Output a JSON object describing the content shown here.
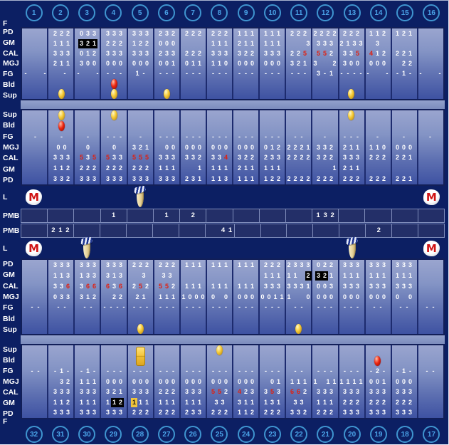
{
  "colors": {
    "background": "#0c1f63",
    "panel_top": "#9aa5cf",
    "panel_bottom": "#3e52a2",
    "grid_line": "#1d2b6e",
    "separator_band": "#8a98c6",
    "circle_blue": "#4aa3e8",
    "digit_white": "#ffffff",
    "digit_red": "#e02010",
    "highlight_black": "#000000",
    "highlight_yellow": "#f0c43c",
    "egg_yellow": "#f8cd3a",
    "egg_red": "#ee2812",
    "m_logo_red": "#d01414",
    "tooth_cream": "#ecdcab",
    "cap_navy": "#1c3390"
  },
  "icons": {
    "m_letter": "M",
    "legend": {
      "YE": "yellow-egg-icon",
      "RE": "red-egg-icon",
      "GB": "gold-bar-icon",
      "M": "m-logo-icon",
      "TH": "tooth-cap-icon"
    }
  },
  "top_circles": [
    "1",
    "2",
    "3",
    "4",
    "5",
    "6",
    "7",
    "8",
    "9",
    "10",
    "11",
    "12",
    "13",
    "14",
    "15",
    "16"
  ],
  "bottom_circles": [
    "32",
    "31",
    "30",
    "29",
    "28",
    "27",
    "26",
    "25",
    "24",
    "23",
    "22",
    "21",
    "20",
    "19",
    "18",
    "17"
  ],
  "f_rows": {
    "top_label": "F",
    "bottom_label": "F"
  },
  "l_rows": [
    {
      "label": "L",
      "cells": [
        "M",
        "",
        "",
        "",
        "TH",
        "",
        "",
        "",
        "",
        "",
        "",
        "",
        "",
        "",
        "",
        "M"
      ]
    },
    {
      "label": "L",
      "cells": [
        "M",
        "",
        "TH",
        "",
        "",
        "",
        "",
        "",
        "",
        "",
        "",
        "",
        "TH",
        "",
        "",
        "M"
      ]
    }
  ],
  "pmb_rows": [
    {
      "label": "PMB",
      "cells": [
        "",
        "",
        "",
        "1",
        "",
        "1",
        "2",
        "",
        "",
        "",
        "",
        "1 3 2",
        "",
        "",
        "",
        ""
      ]
    },
    {
      "label": "PMB",
      "cells": [
        "",
        "2 1 2",
        "",
        "",
        "",
        "",
        "",
        "_ _ 4 1",
        "",
        "",
        "",
        "",
        "",
        "2",
        "",
        ""
      ]
    }
  ],
  "sections": [
    {
      "id": "s1",
      "rows": [
        {
          "label": "PD",
          "cells": [
            "",
            "2 2 2",
            "0 3 3",
            "3 3 3",
            "3 3 3",
            "2 3 2",
            "2 2 2",
            "2 2 2",
            "1 1 1",
            "1 1 1",
            "2 2 2",
            "2 2 2 2",
            "2 2 2",
            "1 1 2",
            "1 2 1",
            ""
          ]
        },
        {
          "label": "GM",
          "cells": [
            "",
            "1 1 1",
            "b3 b2 b1",
            "2 2 2",
            "1 2 2",
            "0 0 0",
            "",
            "1 1 1",
            "2 1 1",
            "1 1 1",
            "_ _ _ 3",
            "3 3 3",
            "2 1 3 3",
            "3",
            "",
            ""
          ]
        },
        {
          "label": "CAL",
          "cells": [
            "",
            "3 3 3",
            "0 1 2",
            "3 3 3",
            "3 3 3",
            "2 3 3",
            "2 2 2",
            "3 3 3",
            "3 2 2",
            "3 3 3",
            "2 2 r5",
            "r5 r5 2",
            "3 3 r5",
            "r4 1 2",
            "2 2 1",
            ""
          ]
        },
        {
          "label": "MGJ",
          "cells": [
            "",
            "2 1 1",
            "3 0 0",
            "0 0 0",
            "0 0 0",
            "0 0 1",
            "0 1 1",
            "1 1 0",
            "0 0 0",
            "0 0 0",
            "3 2 1",
            "3 _ _ 2",
            "3 0 0",
            "0 0 0",
            "_ 2 2",
            ""
          ]
        },
        {
          "label": "FG",
          "cells": [
            "- _ _ -",
            "_ -",
            "- _ _ -",
            "- - -",
            "1 -",
            "- - -",
            "- - -",
            "- - -",
            "- - -",
            "- - -",
            "- - -",
            "3 - 1",
            "- - - -",
            "- _ _ -",
            "- 1 -",
            "- _ _ -"
          ]
        },
        {
          "label": "Bld",
          "cells": [
            "",
            "",
            "",
            "RE",
            "",
            "",
            "",
            "",
            "",
            "",
            "",
            "",
            "",
            "",
            "",
            ""
          ]
        },
        {
          "label": "Sup",
          "cells": [
            "",
            "YE",
            "",
            "YE",
            "",
            "YE",
            "",
            "",
            "",
            "",
            "",
            "",
            "YE",
            "",
            "",
            ""
          ]
        }
      ]
    },
    {
      "id": "s2",
      "rows": [
        {
          "label": "Sup",
          "cells": [
            "",
            "YE",
            "",
            "YE",
            "",
            "",
            "",
            "",
            "",
            "",
            "",
            "",
            "YE",
            "",
            "",
            ""
          ]
        },
        {
          "label": "Bld",
          "cells": [
            "",
            "RE",
            "",
            "",
            "",
            "",
            "",
            "",
            "",
            "",
            "",
            "",
            "",
            "",
            "",
            ""
          ]
        },
        {
          "label": "FG",
          "cells": [
            "-",
            "-",
            "-",
            "- - -",
            "-",
            "- - -",
            "- - -",
            "- - -",
            "- - -",
            "- - -",
            "- -",
            "-",
            "- - -",
            "-",
            "-",
            "-"
          ]
        },
        {
          "label": "MGJ",
          "cells": [
            "",
            "0 0",
            "0",
            "0",
            "3 2 1",
            "_ 0 0",
            "0 0 0",
            "0 0 0",
            "0 0 0",
            "0 1 2",
            "2 2 2 1",
            "3 3 2",
            "2 1 1",
            "1 1 0",
            "0 0 0",
            ""
          ]
        },
        {
          "label": "CAL",
          "cells": [
            "",
            "3 3 3",
            "r5 3 r5",
            "r5 3 3",
            "r5 r5 r5",
            "3 3 3",
            "3 3 2",
            "3 3 r4",
            "3 2 2",
            "2 3 3",
            "2 2 2 2",
            "3 2 2",
            "3 3 3",
            "2 2 2",
            "2 2 1",
            ""
          ]
        },
        {
          "label": "GM",
          "cells": [
            "",
            "1 1 2",
            "2 2 2",
            "2 2 2",
            "2 2 2",
            "1 1 1",
            "_ _ 1",
            "1 1 1",
            "2 1 1",
            "1 1 1",
            "",
            "_ _ _ 1",
            "2 1 1",
            "",
            "",
            ""
          ]
        },
        {
          "label": "PD",
          "cells": [
            "",
            "3 3 2",
            "3 3 3",
            "3 3 3",
            "3 3 3",
            "3 3 3",
            "2 3 1",
            "1 1 3",
            "1 1 1",
            "1 2 2",
            "2 2 2 2",
            "2 2 2",
            "2 2 2",
            "2 2 2",
            "2 2 1",
            ""
          ]
        }
      ]
    },
    {
      "id": "s3",
      "rows": [
        {
          "label": "PD",
          "cells": [
            "",
            "3 3 3",
            "3 3 3",
            "3 3 3",
            "2 2 2",
            "2 2 2",
            "1 1 1",
            "1 1 1",
            "1 1 1",
            "2 2 2",
            "2 3 3 3",
            "0 2 2",
            "3 3 3",
            "3 3 3",
            "3 3 3",
            ""
          ]
        },
        {
          "label": "GM",
          "cells": [
            "",
            "1 1 3",
            "1 3 3",
            "3 1 3",
            "_ 3",
            "3 3",
            "",
            "",
            "",
            "1 1 1",
            "1 1 _ b2",
            "b3 b2 1",
            "1 1 1",
            "1 1 1",
            "1 1 1",
            ""
          ]
        },
        {
          "label": "CAL",
          "cells": [
            "",
            "3 3 r6",
            "3 r6 r6",
            "r6 3 r6",
            "2 r5 2",
            "r5 r5 2",
            "1 1 1",
            "1 1 1",
            "1 1 1",
            "3 3 3",
            "3 3 3 1",
            "0 0 3",
            "3 3 3",
            "3 3 3",
            "3 3 3",
            ""
          ]
        },
        {
          "label": "MGJ",
          "cells": [
            "",
            "0 3 3",
            "3 1 2",
            "_ 2 2",
            "2 1",
            "1 1 1",
            "1 0 0 0",
            "0 _ 0",
            "0 0 0",
            "0 0 1 1",
            "1 _ _ 0",
            "0 0 0",
            "0 0 0",
            "0 0 0",
            "0 _ 0",
            ""
          ]
        },
        {
          "label": "FG",
          "cells": [
            "- -",
            "- -",
            "- -",
            "- - - -",
            "- - -",
            "- - -",
            "- - -",
            "- - -",
            "- - -",
            "- - -",
            "- -",
            "- - -",
            "- - -",
            "- -",
            "- -",
            "- -"
          ]
        },
        {
          "label": "Bld",
          "cells": [
            "",
            "",
            "",
            "",
            "",
            "",
            "",
            "",
            "",
            "",
            "",
            "",
            "",
            "",
            "",
            ""
          ]
        },
        {
          "label": "Sup",
          "cells": [
            "",
            "",
            "",
            "",
            "YE",
            "",
            "",
            "",
            "",
            "",
            "YE",
            "",
            "",
            "",
            "",
            ""
          ]
        }
      ]
    },
    {
      "id": "s4",
      "rows": [
        {
          "label": "Sup",
          "cells": [
            "",
            "",
            "",
            "",
            "GB",
            "",
            "",
            "YE",
            "",
            "",
            "",
            "",
            "",
            "",
            "",
            ""
          ]
        },
        {
          "label": "Bld",
          "cells": [
            "",
            "",
            "",
            "",
            "",
            "",
            "",
            "",
            "",
            "",
            "",
            "",
            "",
            "RE",
            "",
            ""
          ]
        },
        {
          "label": "FG",
          "cells": [
            "- -",
            "- 1 -",
            "- 1 -",
            "- - -",
            "- - -",
            "- - -",
            "- - -",
            "- - -",
            "- - -",
            "- - -",
            "- -",
            "- - -",
            "- - -",
            "- 2 -",
            "- 1 -",
            "- -"
          ]
        },
        {
          "label": "MGJ",
          "cells": [
            "",
            "_ 3 2",
            "1 1 1",
            "0 0 0",
            "0 0 0",
            "0 0 0",
            "0 0 0",
            "0 0 0",
            "0 0 0",
            "_ 0 1",
            "1 1 1",
            "1 _ 1 1",
            "1 1 1 1",
            "0 0 1",
            "0 0 0",
            ""
          ]
        },
        {
          "label": "CAL",
          "cells": [
            "",
            "3 3 3",
            "3 3 3",
            "3 2 1",
            "3 3 3",
            "2 2 2",
            "3 3 3",
            "r5 r5 2",
            "r4 2 3",
            "3 r5 3",
            "r6 r6 2",
            "3 3 3",
            "3 3 3",
            "3 3 3",
            "3 3 3",
            ""
          ]
        },
        {
          "label": "GM",
          "cells": [
            "",
            "1 1 2",
            "1 1 1",
            "1 b1 b2",
            "y1 1 1",
            "1 1 1",
            "1 1 1",
            "3 3",
            "3 1 1",
            "1 3 1",
            "3 3",
            "1 1 1",
            "2 2 2",
            "2 2 2",
            "2 2 2",
            ""
          ]
        },
        {
          "label": "PD",
          "cells": [
            "",
            "3 3 3",
            "3 3 3",
            "3 3 3",
            "2 2 2",
            "2 2 2",
            "2 3 3",
            "2 2 2",
            "1 1 2",
            "2 2 2",
            "3 3 2",
            "2 2 2",
            "3 3 3",
            "3 3 3",
            "3 3 3",
            ""
          ]
        }
      ]
    }
  ]
}
